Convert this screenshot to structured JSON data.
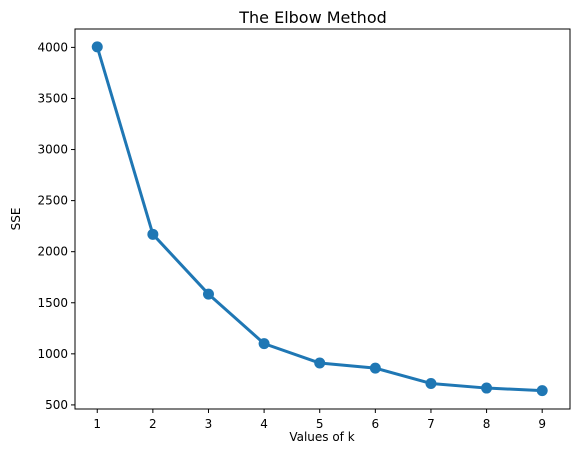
{
  "chart_data": {
    "type": "line",
    "title": "The Elbow Method",
    "xlabel": "Values of k",
    "ylabel": "SSE",
    "x": [
      1,
      2,
      3,
      4,
      5,
      6,
      7,
      8,
      9
    ],
    "y": [
      4005,
      2170,
      1585,
      1100,
      910,
      860,
      710,
      665,
      640
    ],
    "xlim": [
      0.6,
      9.5
    ],
    "ylim": [
      460,
      4180
    ],
    "xticks": [
      1,
      2,
      3,
      4,
      5,
      6,
      7,
      8,
      9
    ],
    "yticks": [
      500,
      1000,
      1500,
      2000,
      2500,
      3000,
      3500,
      4000
    ],
    "marker": "circle",
    "grid": false,
    "color": "#1f77b4"
  }
}
